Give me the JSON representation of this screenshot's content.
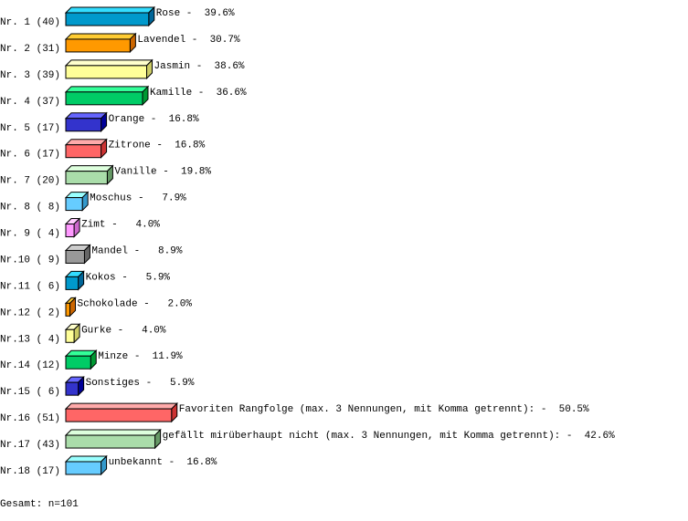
{
  "chart_data": {
    "type": "bar",
    "orientation": "horizontal",
    "style": "3d",
    "unit": "%",
    "categories": [
      "Nr. 1",
      "Nr. 2",
      "Nr. 3",
      "Nr. 4",
      "Nr. 5",
      "Nr. 6",
      "Nr. 7",
      "Nr. 8",
      "Nr. 9",
      "Nr.10",
      "Nr.11",
      "Nr.12",
      "Nr.13",
      "Nr.14",
      "Nr.15",
      "Nr.16",
      "Nr.17",
      "Nr.18"
    ],
    "counts": [
      40,
      31,
      39,
      37,
      17,
      17,
      20,
      8,
      4,
      9,
      6,
      2,
      4,
      12,
      6,
      51,
      43,
      17
    ],
    "count_labels": [
      "(40)",
      "(31)",
      "(39)",
      "(37)",
      "(17)",
      "(17)",
      "(20)",
      "( 8)",
      "( 4)",
      "( 9)",
      "( 6)",
      "( 2)",
      "( 4)",
      "(12)",
      "( 6)",
      "(51)",
      "(43)",
      "(17)"
    ],
    "labels": [
      "Rose",
      "Lavendel",
      "Jasmin",
      "Kamille",
      "Orange",
      "Zitrone",
      "Vanille",
      "Moschus",
      "Zimt",
      "Mandel",
      "Kokos",
      "Schokolade",
      "Gurke",
      "Minze",
      "Sonstiges",
      "Favoriten Rangfolge (max. 3 Nennungen, mit Komma getrennt):",
      "gefällt mirüberhaupt nicht (max. 3 Nennungen, mit Komma getrennt):",
      "unbekannt"
    ],
    "percent_labels": [
      "39.6%",
      "30.7%",
      "38.6%",
      "36.6%",
      "16.8%",
      "16.8%",
      "19.8%",
      "7.9%",
      "4.0%",
      "8.9%",
      "5.9%",
      "2.0%",
      "4.0%",
      "11.9%",
      "5.9%",
      "50.5%",
      "42.6%",
      "16.8%"
    ],
    "values": [
      39.6,
      30.7,
      38.6,
      36.6,
      16.8,
      16.8,
      19.8,
      7.9,
      4.0,
      8.9,
      5.9,
      2.0,
      4.0,
      11.9,
      5.9,
      50.5,
      42.6,
      16.8
    ],
    "colors": [
      "#0099cc",
      "#ff9900",
      "#ffff99",
      "#00cc66",
      "#3333cc",
      "#ff6666",
      "#aaddaa",
      "#66ccff",
      "#ff99ff",
      "#999999",
      "#0099cc",
      "#ff9900",
      "#ffff99",
      "#00cc66",
      "#3333cc",
      "#ff6666",
      "#aaddaa",
      "#66ccff"
    ],
    "top_colors": [
      "#33ddff",
      "#ffcc33",
      "#ffffcc",
      "#33ff99",
      "#6666ff",
      "#ffaaaa",
      "#ddffdd",
      "#99ffff",
      "#ffccff",
      "#cccccc",
      "#33ddff",
      "#ffcc33",
      "#ffffcc",
      "#33ff99",
      "#6666ff",
      "#ffaaaa",
      "#ddffdd",
      "#99ffff"
    ],
    "side_colors": [
      "#006699",
      "#cc6600",
      "#cccc66",
      "#009933",
      "#000099",
      "#cc3333",
      "#669966",
      "#3399cc",
      "#cc66cc",
      "#666666",
      "#006699",
      "#cc6600",
      "#cccc66",
      "#009933",
      "#000099",
      "#cc3333",
      "#669966",
      "#3399cc"
    ]
  },
  "footer": {
    "total": "Gesamt: n=101"
  }
}
